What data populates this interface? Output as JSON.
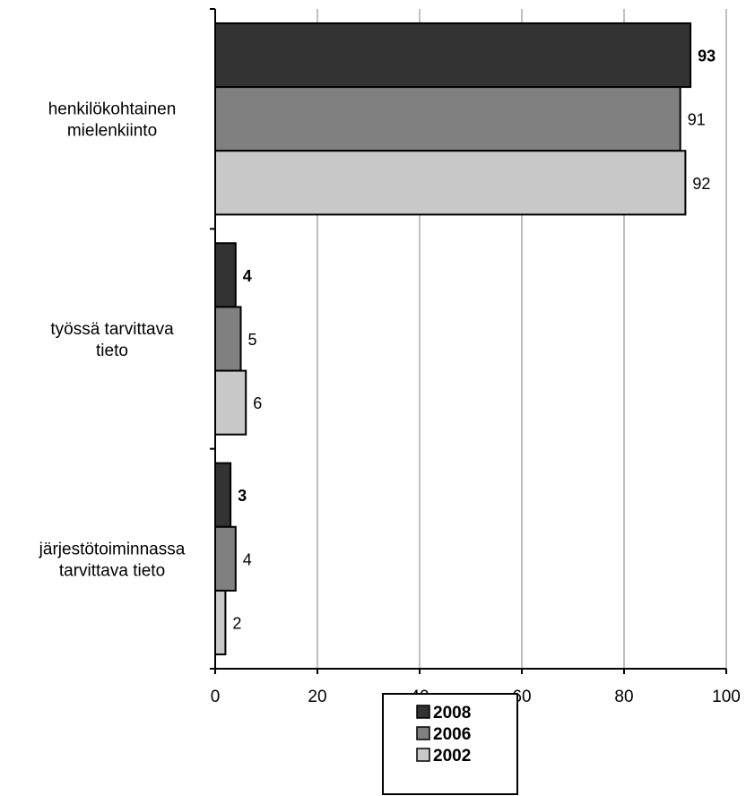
{
  "chart_data": {
    "type": "bar",
    "orientation": "horizontal",
    "categories": [
      [
        "järjestötoiminnassa",
        "tarvittava tieto"
      ],
      [
        "työssä tarvittava",
        "tieto"
      ],
      [
        "henkilökohtainen",
        "mielenkiinto"
      ]
    ],
    "series": [
      {
        "name": "2008",
        "values": [
          3,
          4,
          93
        ],
        "color": "#333333",
        "label_bold": true
      },
      {
        "name": "2006",
        "values": [
          4,
          5,
          91
        ],
        "color": "#808080",
        "label_bold": false
      },
      {
        "name": "2002",
        "values": [
          2,
          6,
          92
        ],
        "color": "#c8c8c8",
        "label_bold": false
      }
    ],
    "xlim": [
      0,
      100
    ],
    "xticks": [
      0,
      20,
      40,
      60,
      80,
      100
    ],
    "grid": true,
    "legend": "bottom",
    "title": "",
    "xlabel": "",
    "ylabel": ""
  }
}
